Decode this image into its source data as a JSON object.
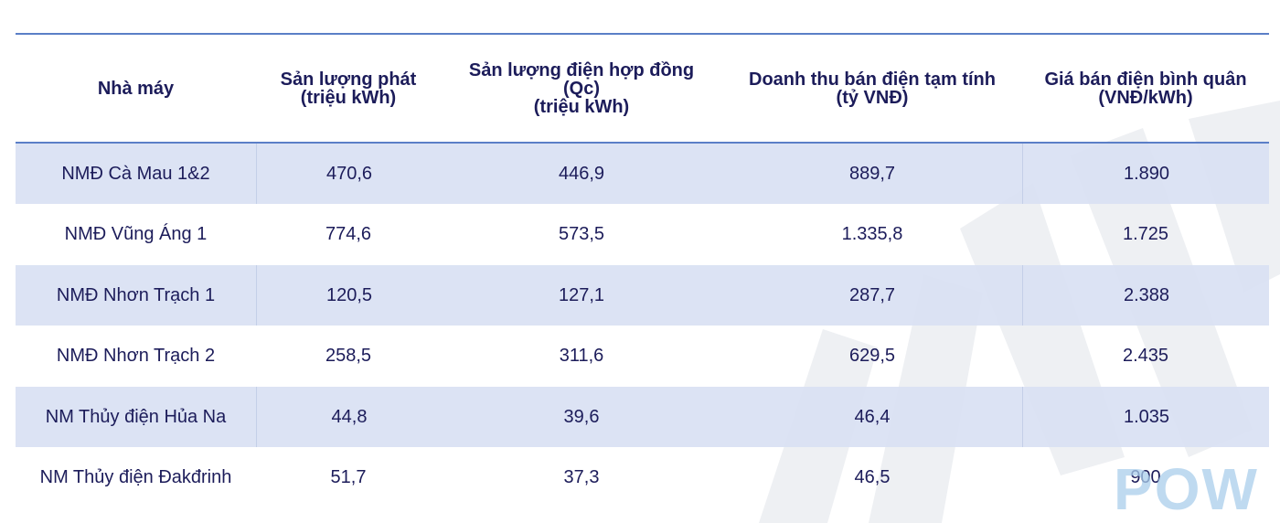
{
  "table": {
    "header": [
      [
        "Nhà máy"
      ],
      [
        "Sản lượng phát",
        "(triệu kWh)"
      ],
      [
        "Sản lượng điện hợp đồng",
        "(Qc)",
        "(triệu kWh)"
      ],
      [
        "Doanh thu bán điện tạm tính",
        "(tỷ VNĐ)"
      ],
      [
        "Giá bán điện bình quân",
        "(VNĐ/kWh)"
      ]
    ],
    "rows": [
      [
        "NMĐ Cà Mau 1&2",
        "470,6",
        "446,9",
        "889,7",
        "1.890"
      ],
      [
        "NMĐ Vũng Áng 1",
        "774,6",
        "573,5",
        "1.335,8",
        "1.725"
      ],
      [
        "NMĐ Nhơn Trạch 1",
        "120,5",
        "127,1",
        "287,7",
        "2.388"
      ],
      [
        "NMĐ Nhơn Trạch 2",
        "258,5",
        "311,6",
        "629,5",
        "2.435"
      ],
      [
        "NM Thủy điện Hủa Na",
        "44,8",
        "39,6",
        "46,4",
        "1.035"
      ],
      [
        "NM Thủy điện Đakđrinh",
        "51,7",
        "37,3",
        "46,5",
        "900"
      ]
    ]
  },
  "logo": "POW"
}
